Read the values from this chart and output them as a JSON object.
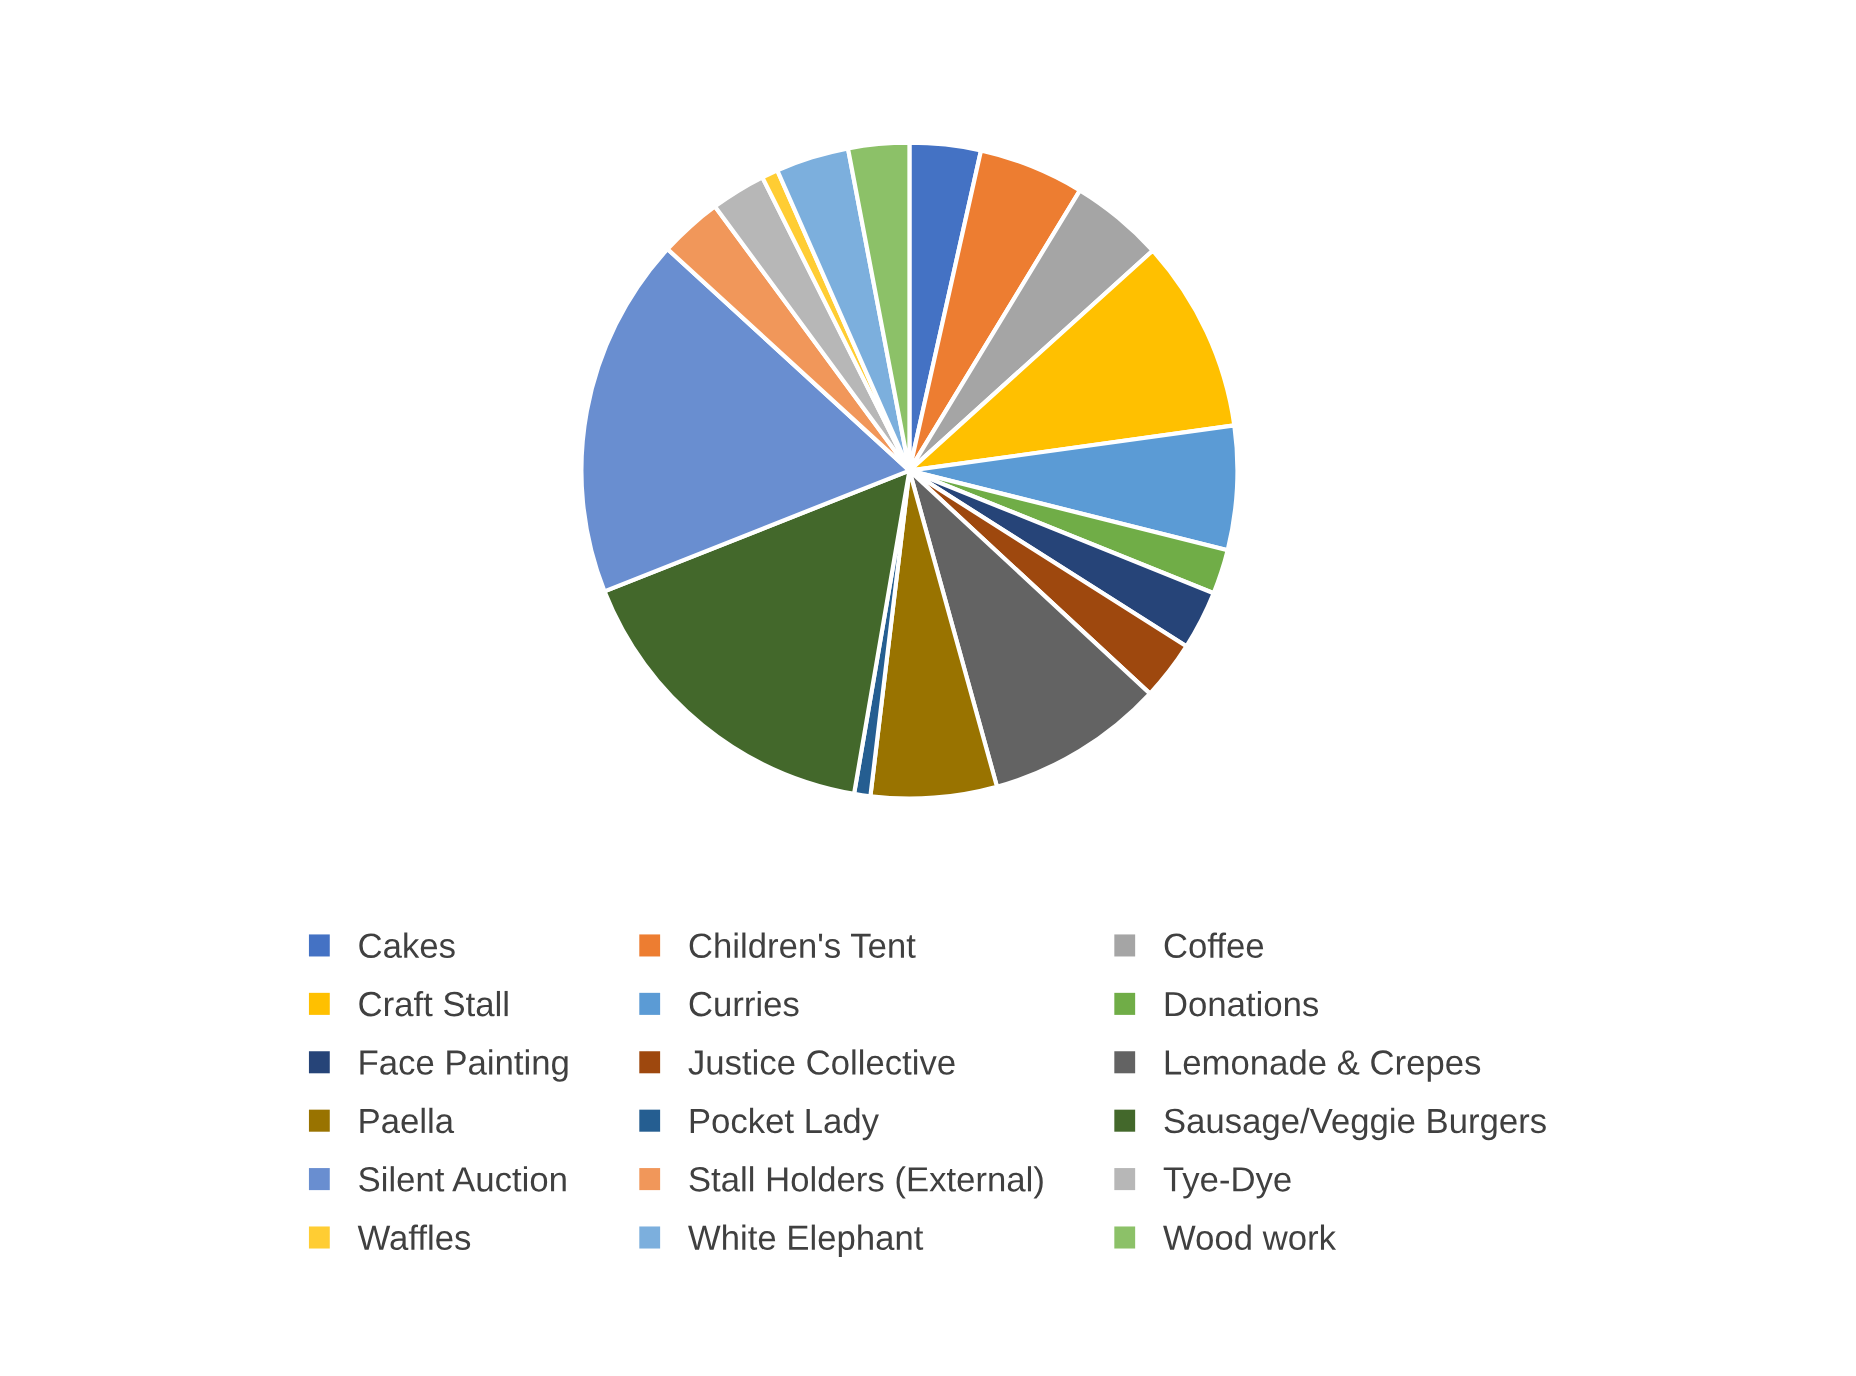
{
  "chart_data": {
    "type": "pie",
    "legend": "bottom",
    "categories": [
      "Cakes",
      "Children's Tent",
      "Coffee",
      "Craft Stall",
      "Curries",
      "Donations",
      "Face Painting",
      "Justice Collective",
      "Lemonade & Crepes",
      "Paella",
      "Pocket Lady",
      "Sausage/Veggie Burgers",
      "Silent Auction",
      "Stall Holders (External)",
      "Tye-Dye",
      "Waffles",
      "White Elephant",
      "Wood work"
    ],
    "values": [
      3.5,
      5.2,
      4.6,
      9.5,
      6.1,
      2.2,
      2.9,
      2.9,
      8.8,
      6.2,
      0.8,
      16.3,
      17.8,
      3.1,
      2.7,
      0.8,
      3.6,
      3.0
    ],
    "colors": [
      "#4472c4",
      "#ed7d31",
      "#a5a5a5",
      "#ffc000",
      "#5b9bd5",
      "#70ad47",
      "#264478",
      "#9e480e",
      "#636363",
      "#997300",
      "#255e91",
      "#43682b",
      "#698ed0",
      "#f1975a",
      "#b7b7b7",
      "#ffcd33",
      "#7cafdd",
      "#8cc168"
    ]
  }
}
